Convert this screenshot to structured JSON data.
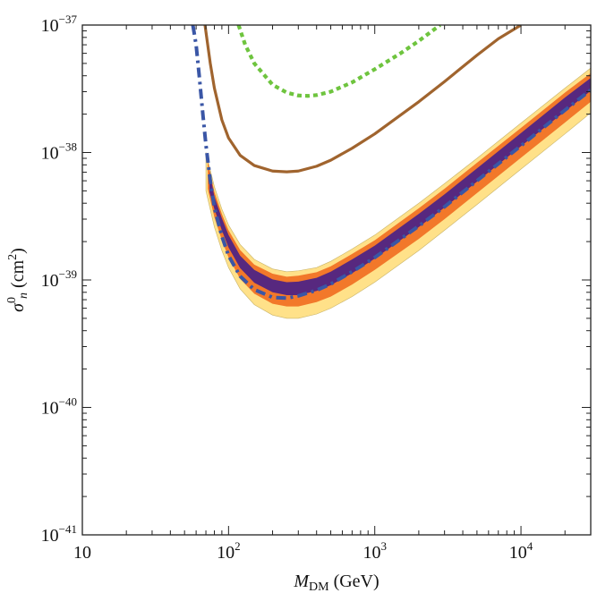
{
  "chart_data": {
    "type": "line",
    "title": "",
    "xscale": "log",
    "yscale": "log",
    "xlim": [
      10,
      30000
    ],
    "ylim": [
      1e-41,
      1e-37
    ],
    "xlabel": {
      "main": "M",
      "sub": "DM",
      "unit": " (GeV)"
    },
    "ylabel": {
      "main": "σ",
      "sup": "0",
      "sub": "n",
      "unit_pre": " (cm",
      "unit_sup": "2",
      "unit_post": ")"
    },
    "x_ticks": [
      {
        "value": 10,
        "base": "10",
        "exp": ""
      },
      {
        "value": 100,
        "base": "10",
        "exp": "2"
      },
      {
        "value": 1000,
        "base": "10",
        "exp": "3"
      },
      {
        "value": 10000,
        "base": "10",
        "exp": "4"
      }
    ],
    "y_ticks": [
      {
        "value": 1e-37,
        "base": "10",
        "exp": "−37"
      },
      {
        "value": 1e-38,
        "base": "10",
        "exp": "−38"
      },
      {
        "value": 1e-39,
        "base": "10",
        "exp": "−39"
      },
      {
        "value": 1e-40,
        "base": "10",
        "exp": "−40"
      },
      {
        "value": 1e-41,
        "base": "10",
        "exp": "−41"
      }
    ],
    "colors": {
      "band_outer": "#ffe189",
      "band_mid": "#f2782a",
      "band_inner": "#57287f",
      "dotdash": "#3a56a6",
      "brown": "#a0642e",
      "green": "#6ec43e"
    },
    "bands": [
      {
        "name": "outer-band",
        "x": [
          70,
          80,
          90,
          100,
          120,
          150,
          200,
          250,
          300,
          400,
          500,
          700,
          1000,
          2000,
          3000,
          5000,
          10000,
          20000,
          30000
        ],
        "y_low": [
          5e-39,
          2.6e-39,
          1.7e-39,
          1.25e-39,
          8.5e-40,
          6.4e-40,
          5.3e-40,
          5e-40,
          5e-40,
          5.4e-40,
          6e-40,
          7.4e-40,
          9.6e-40,
          1.7e-39,
          2.45e-39,
          3.9e-39,
          7.4e-39,
          1.4e-38,
          2.05e-38
        ],
        "y_high": [
          1e-38,
          5.4e-39,
          3.6e-39,
          2.7e-39,
          1.9e-39,
          1.45e-39,
          1.22e-39,
          1.16e-39,
          1.18e-39,
          1.25e-39,
          1.4e-39,
          1.75e-39,
          2.25e-39,
          4e-39,
          5.7e-39,
          9e-39,
          1.7e-38,
          3.2e-38,
          4.6e-38
        ]
      },
      {
        "name": "mid-band",
        "x": [
          72,
          80,
          90,
          100,
          120,
          150,
          200,
          250,
          300,
          400,
          500,
          700,
          1000,
          2000,
          3000,
          5000,
          10000,
          20000,
          30000
        ],
        "y_low": [
          5.2e-39,
          3.1e-39,
          2.05e-39,
          1.5e-39,
          1.02e-39,
          7.8e-40,
          6.5e-40,
          6.2e-40,
          6.2e-40,
          6.7e-40,
          7.4e-40,
          9.2e-40,
          1.2e-39,
          2.1e-39,
          3e-39,
          4.8e-39,
          9.1e-39,
          1.72e-38,
          2.5e-38
        ],
        "y_high": [
          8.6e-39,
          4.9e-39,
          3.3e-39,
          2.45e-39,
          1.72e-39,
          1.32e-39,
          1.12e-39,
          1.06e-39,
          1.08e-39,
          1.15e-39,
          1.28e-39,
          1.6e-39,
          2.05e-39,
          3.65e-39,
          5.2e-39,
          8.3e-39,
          1.56e-38,
          2.95e-38,
          4.2e-38
        ]
      },
      {
        "name": "inner-band",
        "x": [
          74,
          80,
          90,
          100,
          120,
          150,
          200,
          250,
          300,
          400,
          500,
          700,
          1000,
          2000,
          3000,
          5000,
          10000,
          20000,
          30000
        ],
        "y_low": [
          4.9e-39,
          3.6e-39,
          2.45e-39,
          1.8e-39,
          1.24e-39,
          9.5e-40,
          8e-40,
          7.6e-40,
          7.6e-40,
          8.2e-40,
          9.1e-40,
          1.13e-39,
          1.47e-39,
          2.6e-39,
          3.7e-39,
          5.9e-39,
          1.12e-38,
          2.1e-38,
          3.05e-38
        ],
        "y_high": [
          7.2e-39,
          4.5e-39,
          3.05e-39,
          2.25e-39,
          1.55e-39,
          1.2e-39,
          1.01e-39,
          9.6e-40,
          9.7e-40,
          1.04e-39,
          1.16e-39,
          1.45e-39,
          1.86e-39,
          3.3e-39,
          4.7e-39,
          7.5e-39,
          1.42e-38,
          2.7e-38,
          3.85e-38
        ]
      }
    ],
    "series": [
      {
        "name": "dot-dashed limit",
        "style": "dotdash",
        "x": [
          57,
          60,
          63,
          67,
          70,
          75,
          80,
          90,
          100,
          120,
          150,
          200,
          250,
          300,
          400,
          500,
          700,
          1000,
          2000,
          3000,
          5000,
          10000,
          20000,
          30000
        ],
        "y": [
          1e-37,
          7e-38,
          4e-38,
          1.9e-38,
          1.15e-38,
          6e-39,
          3.7e-39,
          2.2e-39,
          1.55e-39,
          1.07e-39,
          8.4e-40,
          7.3e-40,
          7.2e-40,
          7.5e-40,
          8.3e-40,
          9.3e-40,
          1.16e-39,
          1.5e-39,
          2.65e-39,
          3.75e-39,
          6e-39,
          1.13e-38,
          2.15e-38,
          3.1e-38
        ]
      },
      {
        "name": "brown limit",
        "style": "solid",
        "x": [
          69,
          75,
          80,
          90,
          100,
          120,
          150,
          200,
          250,
          300,
          400,
          500,
          700,
          1000,
          2000,
          3000,
          5000,
          7000,
          10000
        ],
        "y": [
          1e-37,
          5e-38,
          3.2e-38,
          1.8e-38,
          1.3e-38,
          9.5e-39,
          7.9e-39,
          7.15e-39,
          7.05e-39,
          7.15e-39,
          7.8e-39,
          8.7e-39,
          1.08e-38,
          1.4e-38,
          2.5e-38,
          3.6e-38,
          5.8e-38,
          7.8e-38,
          1e-37
        ]
      },
      {
        "name": "green limit",
        "style": "dotted",
        "x": [
          117,
          130,
          150,
          200,
          250,
          300,
          350,
          400,
          500,
          700,
          1000,
          1500,
          2000,
          2800
        ],
        "y": [
          1e-37,
          7e-38,
          5e-38,
          3.4e-38,
          2.95e-38,
          2.8e-38,
          2.78e-38,
          2.82e-38,
          3e-38,
          3.55e-38,
          4.5e-38,
          6e-38,
          7.5e-38,
          1e-37
        ]
      }
    ]
  }
}
